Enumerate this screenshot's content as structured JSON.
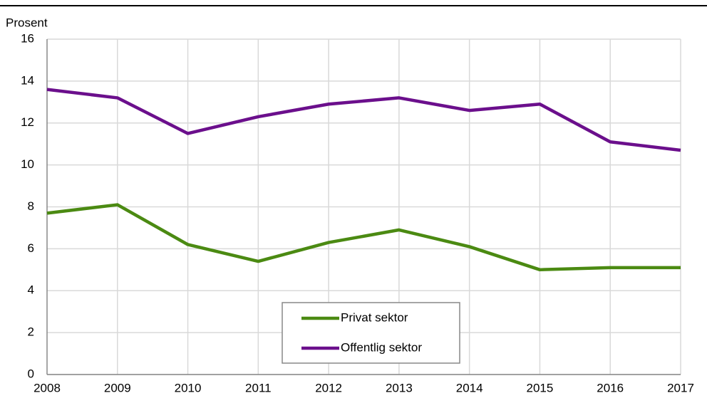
{
  "chart_data": {
    "type": "line",
    "y_label": "Prosent",
    "categories": [
      "2008",
      "2009",
      "2010",
      "2011",
      "2012",
      "2013",
      "2014",
      "2015",
      "2016",
      "2017"
    ],
    "series": [
      {
        "name": "Privat sektor",
        "color": "#4b8a12",
        "values": [
          7.7,
          8.1,
          6.2,
          5.4,
          6.3,
          6.9,
          6.1,
          5.0,
          5.1,
          5.1
        ]
      },
      {
        "name": "Offentlig sektor",
        "color": "#6b0f8c",
        "values": [
          13.6,
          13.2,
          11.5,
          12.3,
          12.9,
          13.2,
          12.6,
          12.9,
          11.1,
          10.7
        ]
      }
    ],
    "ylim": [
      0,
      16
    ],
    "yticks": [
      0,
      2,
      4,
      6,
      8,
      10,
      12,
      14,
      16
    ],
    "grid": true,
    "legend": "lower center"
  }
}
